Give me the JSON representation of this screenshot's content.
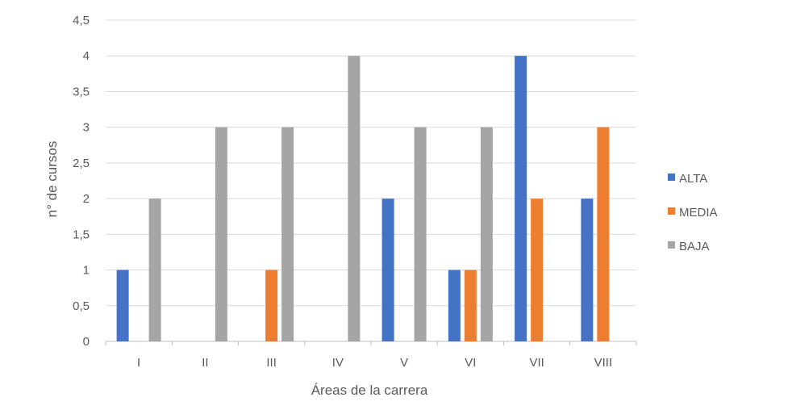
{
  "chart_data": {
    "type": "bar",
    "title": "",
    "xlabel": "Áreas de la carrera",
    "ylabel": "n° de cursos",
    "categories": [
      "I",
      "II",
      "III",
      "IV",
      "V",
      "VI",
      "VII",
      "VIII"
    ],
    "ylim": [
      0,
      4.5
    ],
    "y_ticks": [
      "0",
      "0,5",
      "1",
      "1,5",
      "2",
      "2,5",
      "3",
      "3,5",
      "4",
      "4,5"
    ],
    "y_tick_values": [
      0,
      0.5,
      1,
      1.5,
      2,
      2.5,
      3,
      3.5,
      4,
      4.5
    ],
    "grid": true,
    "legend_position": "right",
    "series": [
      {
        "name": "ALTA",
        "color": "#4472C4",
        "values": [
          1,
          0,
          0,
          0,
          2,
          1,
          4,
          2
        ]
      },
      {
        "name": "MEDIA",
        "color": "#ED7D31",
        "values": [
          0,
          0,
          1,
          0,
          0,
          1,
          2,
          3
        ]
      },
      {
        "name": "BAJA",
        "color": "#A5A5A5",
        "values": [
          2,
          3,
          3,
          4,
          3,
          3,
          0,
          0
        ]
      }
    ]
  }
}
